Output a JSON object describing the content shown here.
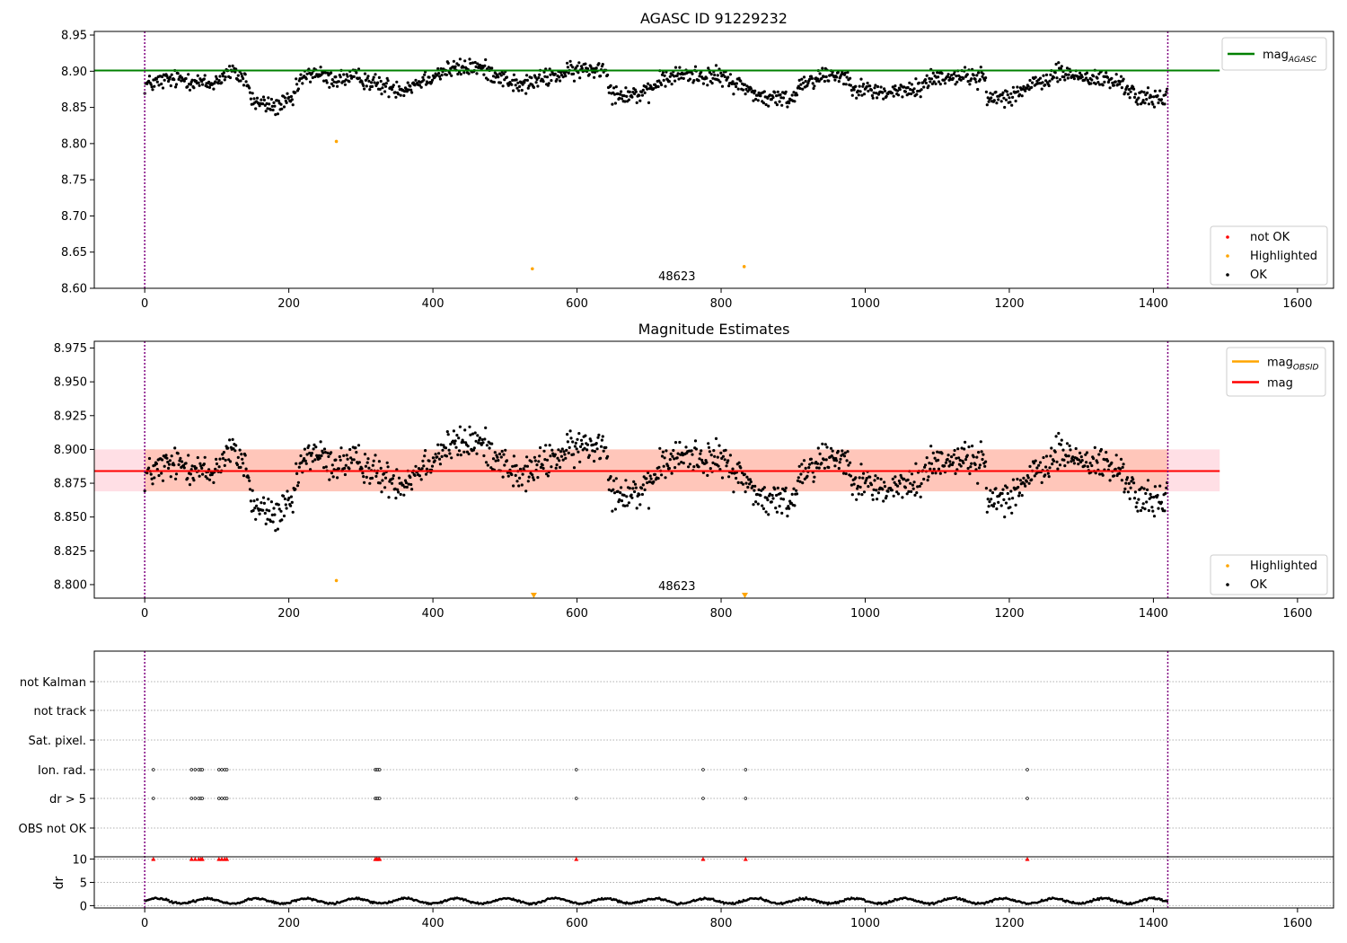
{
  "chart_data": [
    {
      "type": "scatter",
      "title": "AGASC ID 91229232",
      "xlim": [
        -70,
        1650
      ],
      "ylim": [
        8.6,
        8.955
      ],
      "x_ticks": [
        0,
        200,
        400,
        600,
        800,
        1000,
        1200,
        1400,
        1600
      ],
      "y_ticks": [
        "8.60",
        "8.65",
        "8.70",
        "8.75",
        "8.80",
        "8.85",
        "8.90",
        "8.95"
      ],
      "vlines": [
        0,
        1420
      ],
      "reference_line": {
        "name": "mag_AGASC",
        "label_main": "mag",
        "label_sub": "AGASC",
        "y": 8.901,
        "x_range": [
          -70,
          1492
        ],
        "color": "#008000"
      },
      "obsid_label": {
        "text": "48623",
        "x": 710
      },
      "legend_lines": [
        {
          "label_main": "mag",
          "label_sub": "AGASC",
          "color": "#008000"
        }
      ],
      "legend_points": [
        {
          "label": "not OK",
          "color": "#ff0000"
        },
        {
          "label": "Highlighted",
          "color": "#ffa500"
        },
        {
          "label": "OK",
          "color": "#000000"
        }
      ],
      "series": [
        {
          "name": "OK",
          "color": "#000000",
          "x_range": [
            0,
            1420
          ],
          "step": 1.1,
          "noise": 0.009
        },
        {
          "name": "Highlighted",
          "color": "#ffa500",
          "points": [
            [
              266,
              8.803
            ],
            [
              538,
              8.627
            ],
            [
              832,
              8.63
            ]
          ]
        }
      ]
    },
    {
      "type": "scatter",
      "title": "Magnitude Estimates",
      "xlim": [
        -70,
        1650
      ],
      "ylim": [
        8.79,
        8.98
      ],
      "x_ticks": [
        0,
        200,
        400,
        600,
        800,
        1000,
        1200,
        1400,
        1600
      ],
      "y_ticks": [
        "8.800",
        "8.825",
        "8.850",
        "8.875",
        "8.900",
        "8.925",
        "8.950",
        "8.975"
      ],
      "vlines": [
        0,
        1420
      ],
      "band_outer": {
        "y": [
          8.869,
          8.9
        ],
        "color": "#ffc0cb"
      },
      "band_inner": {
        "y": [
          8.869,
          8.9
        ],
        "color": "#ffa07a"
      },
      "reference_line": {
        "name": "mag",
        "y": 8.884,
        "x_range": [
          -70,
          1492
        ],
        "color": "#ff0000"
      },
      "obsid_label": {
        "text": "48623",
        "x": 710
      },
      "legend_lines": [
        {
          "label_main": "mag",
          "label_sub": "OBSID",
          "color": "#ffa500"
        },
        {
          "label_main": "mag",
          "label_sub": "",
          "color": "#ff0000"
        }
      ],
      "legend_points": [
        {
          "label": "Highlighted",
          "color": "#ffa500"
        },
        {
          "label": "OK",
          "color": "#000000"
        }
      ],
      "series": [
        {
          "name": "OK",
          "color": "#000000",
          "x_range": [
            0,
            1420
          ],
          "step": 1.1,
          "noise": 0.009
        },
        {
          "name": "Highlighted",
          "color": "#ffa500",
          "points": [
            [
              266,
              8.803
            ]
          ]
        },
        {
          "name": "Highlighted (below range)",
          "color": "#ffa500",
          "marker": "triangle-down",
          "points": [
            [
              540,
              8.792
            ],
            [
              833,
              8.792
            ]
          ]
        }
      ]
    },
    {
      "type": "scatter",
      "title": "",
      "xlim": [
        -70,
        1650
      ],
      "x_ticks": [
        0,
        200,
        400,
        600,
        800,
        1000,
        1200,
        1400,
        1600
      ],
      "vlines": [
        0,
        1420
      ],
      "flag_rows": [
        "not Kalman",
        "not track",
        "Sat. pixel.",
        "Ion. rad.",
        "dr > 5",
        "OBS not OK"
      ],
      "flag_events": {
        "Ion. rad.": [
          12,
          65,
          70,
          75,
          78,
          80,
          103,
          107,
          111,
          114,
          320,
          322,
          324,
          326,
          599,
          775,
          834,
          1225
        ],
        "dr > 5": [
          12,
          65,
          70,
          75,
          78,
          80,
          103,
          107,
          111,
          114,
          320,
          322,
          324,
          326,
          599,
          775,
          834,
          1225
        ]
      },
      "dr": {
        "ylabel": "dr",
        "ylim": [
          -0.5,
          10.5
        ],
        "y_ticks": [
          "0",
          "5",
          "10"
        ],
        "capped_value": 10,
        "capped_color": "#ff0000",
        "capped_x": [
          12,
          65,
          70,
          75,
          78,
          80,
          103,
          107,
          111,
          114,
          320,
          322,
          324,
          326,
          599,
          775,
          834,
          1225
        ],
        "x_range": [
          0,
          1420
        ],
        "step": 1.5,
        "mean": 1.0
      }
    }
  ]
}
